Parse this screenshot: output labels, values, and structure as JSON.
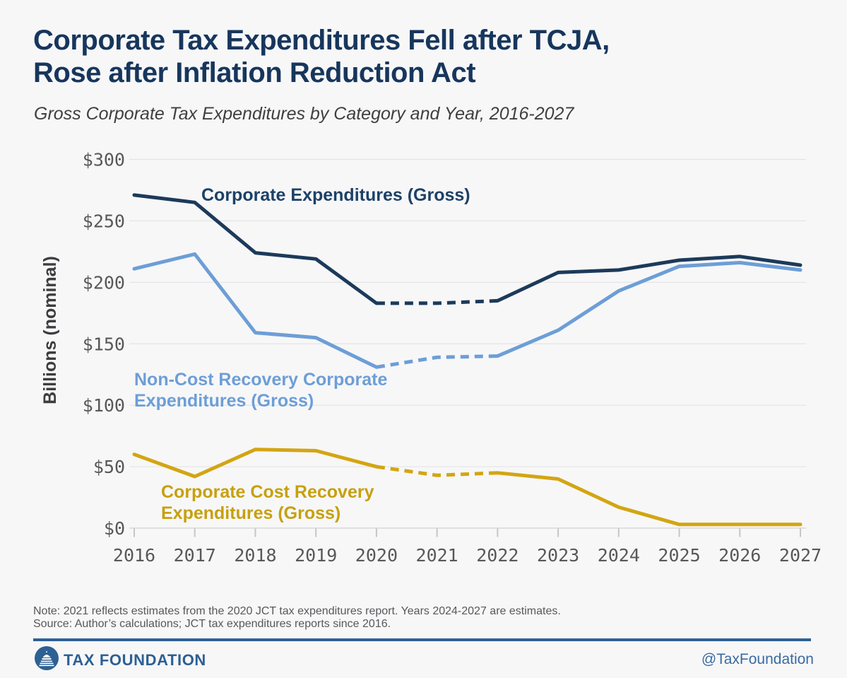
{
  "page": {
    "background_color": "#f7f7f8",
    "accent_color": "#2d6093"
  },
  "header": {
    "title": "Corporate Tax Expenditures Fell after TCJA, Rose after Inflation Reduction Act",
    "title_line1": "Corporate Tax Expenditures Fell after TCJA,",
    "title_line2": "Rose after Inflation Reduction Act",
    "subtitle": "Gross Corporate Tax Expenditures by Category and Year, 2016-2027"
  },
  "chart_data": {
    "type": "line",
    "title": "Gross Corporate Tax Expenditures by Category and Year, 2016-2027",
    "xlabel": "",
    "ylabel": "Billions (nominal)",
    "x": [
      2016,
      2017,
      2018,
      2019,
      2020,
      2021,
      2022,
      2023,
      2024,
      2025,
      2026,
      2027
    ],
    "series": [
      {
        "name": "Corporate Expenditures (Gross)",
        "color": "#1c3a5a",
        "values": [
          271,
          265,
          224,
          219,
          183,
          183,
          185,
          208,
          210,
          218,
          221,
          214
        ],
        "dashed_between_years": [
          2020,
          2022
        ]
      },
      {
        "name": "Non-Cost Recovery Corporate Expenditures (Gross)",
        "color": "#6d9ed6",
        "values": [
          211,
          223,
          159,
          155,
          131,
          139,
          140,
          161,
          193,
          213,
          216,
          210
        ],
        "dashed_between_years": [
          2020,
          2022
        ]
      },
      {
        "name": "Corporate Cost Recovery Expenditures (Gross)",
        "color": "#d3a512",
        "values": [
          60,
          42,
          64,
          63,
          50,
          43,
          45,
          40,
          17,
          3,
          3,
          3
        ],
        "dashed_between_years": [
          2020,
          2022
        ]
      }
    ],
    "ylim": [
      0,
      300
    ],
    "y_ticks": [
      300,
      250,
      200,
      150,
      100,
      50,
      0
    ],
    "y_tick_prefix": "$",
    "grid": true,
    "legend_position": "inline-labels",
    "tick_color": "#58585a",
    "gridline_color": "#e4e4e6",
    "axis_line_color": "#d8d8da"
  },
  "notes": {
    "note": "Note: 2021 reflects estimates from the 2020 JCT tax expenditures report. Years 2024-2027 are estimates.",
    "source": "Source: Author’s calculations; JCT tax expenditures reports since 2016."
  },
  "footer": {
    "brand": "TAX FOUNDATION",
    "handle": "@TaxFoundation"
  }
}
